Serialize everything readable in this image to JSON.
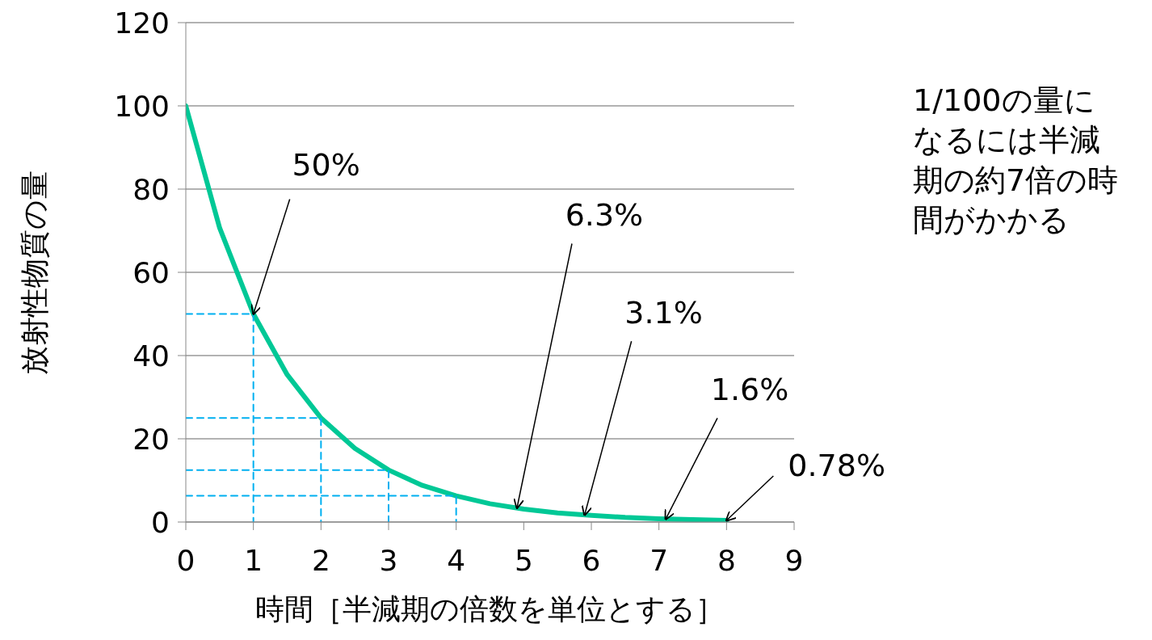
{
  "chart_data": {
    "type": "line",
    "xlabel": "時間［半減期の倍数を単位とする］",
    "ylabel": "放射性物質の量",
    "xlim": [
      0,
      9
    ],
    "xticks": [
      0,
      1,
      2,
      3,
      4,
      5,
      6,
      7,
      8,
      9
    ],
    "ylim": [
      0,
      120
    ],
    "yticks": [
      0,
      20,
      40,
      60,
      80,
      100,
      120
    ],
    "grid": "y",
    "marker": "none",
    "series": [
      {
        "color": "#00c896",
        "line_style": "solid",
        "x": [
          0,
          0.5,
          1,
          1.5,
          2,
          2.5,
          3,
          3.5,
          4,
          4.5,
          5,
          5.5,
          6,
          6.5,
          7,
          7.5,
          8
        ],
        "values": [
          100,
          70.7,
          50,
          35.4,
          25,
          17.7,
          12.5,
          8.8,
          6.3,
          4.4,
          3.1,
          2.2,
          1.6,
          1.1,
          0.8,
          0.6,
          0.4
        ]
      },
      {
        "color": "#00b0f0",
        "line_style": "dashed",
        "x": [
          0,
          1,
          1
        ],
        "values": [
          50,
          50,
          0
        ]
      },
      {
        "color": "#00b0f0",
        "line_style": "dashed",
        "x": [
          0,
          2,
          2
        ],
        "values": [
          25,
          25,
          0
        ]
      },
      {
        "color": "#00b0f0",
        "line_style": "dashed",
        "x": [
          0,
          3,
          3
        ],
        "values": [
          12.5,
          12.5,
          0
        ]
      },
      {
        "color": "#00b0f0",
        "line_style": "dashed",
        "x": [
          0,
          4,
          4
        ],
        "values": [
          6.3,
          6.3,
          0
        ]
      }
    ],
    "annotations": [
      {
        "text": "50%",
        "x": 1,
        "y": 50
      },
      {
        "text": "6.3%",
        "x": 4.9,
        "y": 3.4
      },
      {
        "text": "3.1%",
        "x": 5.9,
        "y": 1.7
      },
      {
        "text": "1.6%",
        "x": 7.1,
        "y": 0.7
      },
      {
        "text": "0.78%",
        "x": 8,
        "y": 0.4
      },
      "1/100の量になるには半減期の約7倍の時間がかかる"
    ]
  }
}
